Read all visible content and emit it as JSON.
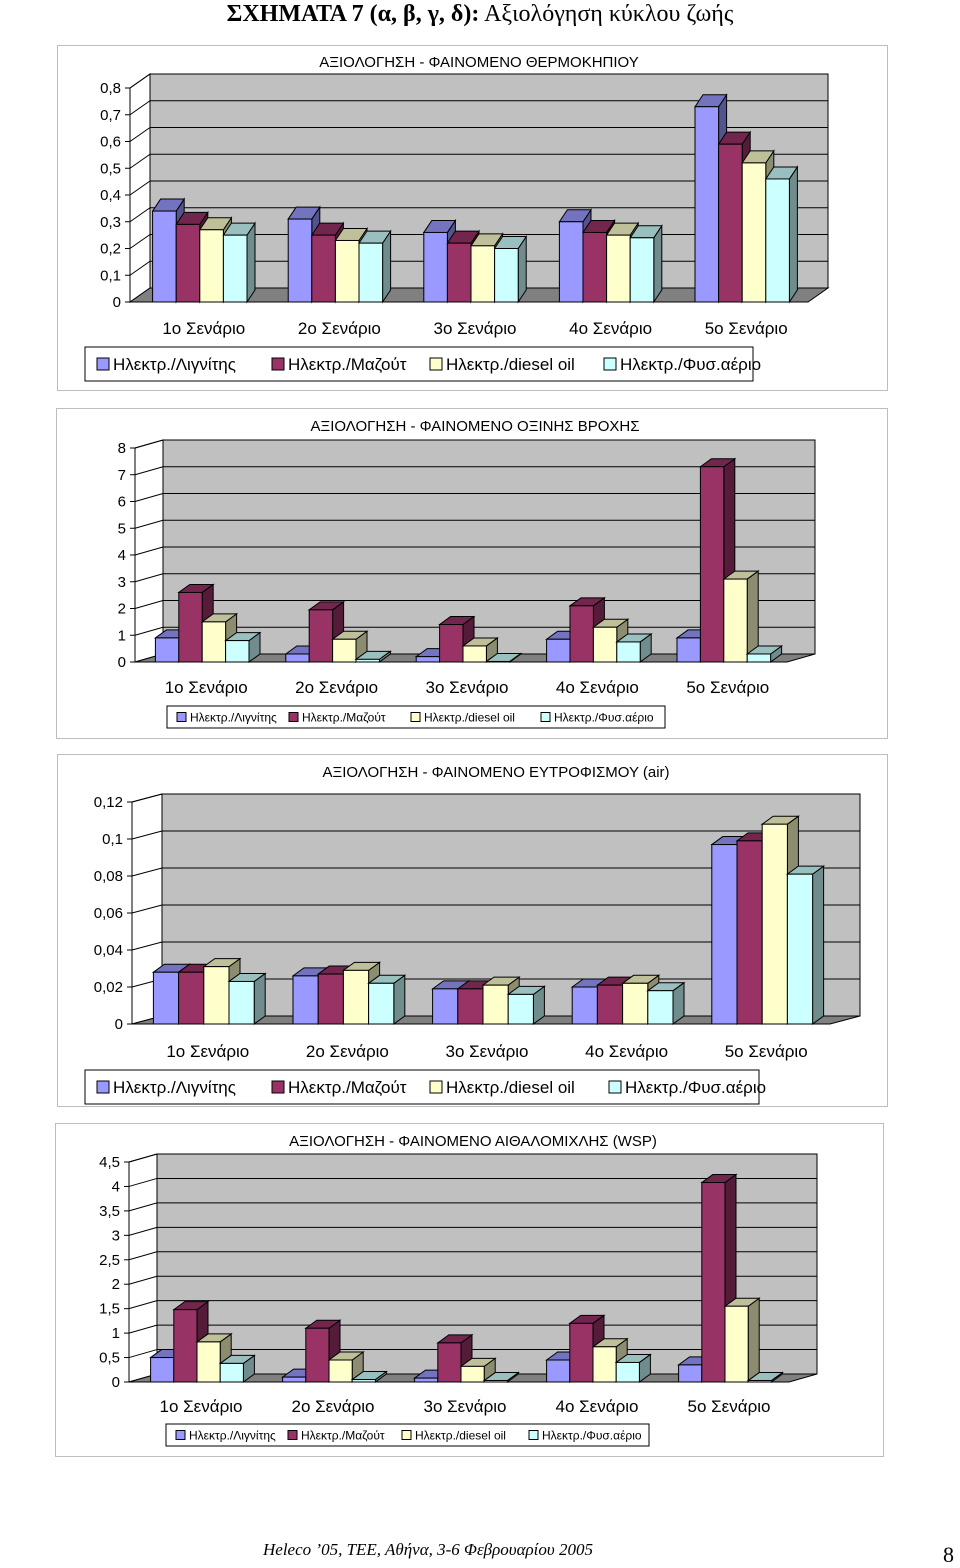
{
  "page": {
    "title_bold": "ΣΧΗΜΑΤΑ 7 (α, β, γ, δ):",
    "title_rest": "Αξιολόγηση κύκλου ζωής",
    "footer": "Heleco ’05, ΤΕΕ, Αθήνα, 3-6 Φεβρουαρίου 2005",
    "page_number": "8"
  },
  "colors": {
    "series": [
      "#9999FF",
      "#993366",
      "#FFFFCC",
      "#CCFFFF"
    ],
    "wall": "#C0C0C0",
    "floor": "#808080"
  },
  "chart_data": [
    {
      "type": "bar",
      "title": "ΑΞΙΟΛΟΓΗΣΗ - ΦΑΙΝΟΜΕΝΟ ΘΕΡΜΟΚΗΠΙΟΥ",
      "categories": [
        "1ο Σενάριο",
        "2ο Σενάριο",
        "3ο Σενάριο",
        "4ο Σενάριο",
        "5ο Σενάριο"
      ],
      "series": [
        {
          "name": "Ηλεκτρ./Λιγνίτης",
          "values": [
            0.34,
            0.31,
            0.26,
            0.3,
            0.73
          ]
        },
        {
          "name": "Ηλεκτρ./Μαζούτ",
          "values": [
            0.29,
            0.25,
            0.22,
            0.26,
            0.59
          ]
        },
        {
          "name": "Ηλεκτρ./diesel oil",
          "values": [
            0.27,
            0.23,
            0.21,
            0.25,
            0.52
          ]
        },
        {
          "name": "Ηλεκτρ./Φυσ.αέριο",
          "values": [
            0.25,
            0.22,
            0.2,
            0.24,
            0.46
          ]
        }
      ],
      "yticks": [
        "0",
        "0,1",
        "0,2",
        "0,3",
        "0,4",
        "0,5",
        "0,6",
        "0,7",
        "0,8"
      ],
      "ylim": [
        0,
        0.8
      ],
      "legend": "bottom"
    },
    {
      "type": "bar",
      "title": "ΑΞΙΟΛΟΓΗΣΗ - ΦΑΙΝΟΜΕΝΟ ΟΞΙΝΗΣ ΒΡΟΧΗΣ",
      "categories": [
        "1ο Σενάριο",
        "2ο Σενάριο",
        "3ο Σενάριο",
        "4ο Σενάριο",
        "5ο Σενάριο"
      ],
      "series": [
        {
          "name": "Ηλεκτρ./Λιγνίτης",
          "values": [
            0.9,
            0.3,
            0.2,
            0.85,
            0.9
          ]
        },
        {
          "name": "Ηλεκτρ./Μαζούτ",
          "values": [
            2.6,
            1.95,
            1.4,
            2.1,
            7.3
          ]
        },
        {
          "name": "Ηλεκτρ./diesel oil",
          "values": [
            1.5,
            0.85,
            0.6,
            1.3,
            3.1
          ]
        },
        {
          "name": "Ηλεκτρ./Φυσ.αέριο",
          "values": [
            0.8,
            0.1,
            0.02,
            0.75,
            0.3
          ]
        }
      ],
      "yticks": [
        "0",
        "1",
        "2",
        "3",
        "4",
        "5",
        "6",
        "7",
        "8"
      ],
      "ylim": [
        0,
        8
      ],
      "legend": "bottom"
    },
    {
      "type": "bar",
      "title": "ΑΞΙΟΛΟΓΗΣΗ - ΦΑΙΝΟΜΕΝΟ ΕΥΤΡΟΦΙΣΜΟΥ (air)",
      "categories": [
        "1ο Σενάριο",
        "2ο Σενάριο",
        "3ο Σενάριο",
        "4ο Σενάριο",
        "5ο Σενάριο"
      ],
      "series": [
        {
          "name": "Ηλεκτρ./Λιγνίτης",
          "values": [
            0.028,
            0.026,
            0.019,
            0.02,
            0.097
          ]
        },
        {
          "name": "Ηλεκτρ./Μαζούτ",
          "values": [
            0.028,
            0.027,
            0.019,
            0.021,
            0.099
          ]
        },
        {
          "name": "Ηλεκτρ./diesel oil",
          "values": [
            0.031,
            0.029,
            0.021,
            0.022,
            0.108
          ]
        },
        {
          "name": "Ηλεκτρ./Φυσ.αέριο",
          "values": [
            0.023,
            0.022,
            0.016,
            0.018,
            0.081
          ]
        }
      ],
      "yticks": [
        "0",
        "0,02",
        "0,04",
        "0,06",
        "0,08",
        "0,1",
        "0,12"
      ],
      "ylim": [
        0,
        0.12
      ],
      "legend": "bottom"
    },
    {
      "type": "bar",
      "title": "ΑΞΙΟΛΟΓΗΣΗ - ΦΑΙΝΟΜΕΝΟ ΑΙΘΑΛΟΜΙΧΛΗΣ (WSP)",
      "categories": [
        "1ο Σενάριο",
        "2ο Σενάριο",
        "3ο Σενάριο",
        "4ο Σενάριο",
        "5ο Σενάριο"
      ],
      "series": [
        {
          "name": "Ηλεκτρ./Λιγνίτης",
          "values": [
            0.5,
            0.1,
            0.08,
            0.45,
            0.35
          ]
        },
        {
          "name": "Ηλεκτρ./Μαζούτ",
          "values": [
            1.48,
            1.1,
            0.8,
            1.2,
            4.08
          ]
        },
        {
          "name": "Ηλεκτρ./diesel oil",
          "values": [
            0.82,
            0.45,
            0.32,
            0.72,
            1.55
          ]
        },
        {
          "name": "Ηλεκτρ./Φυσ.αέριο",
          "values": [
            0.38,
            0.05,
            0.03,
            0.4,
            0.03
          ]
        }
      ],
      "yticks": [
        "0",
        "0,5",
        "1",
        "1,5",
        "2",
        "2,5",
        "3",
        "3,5",
        "4",
        "4,5"
      ],
      "ylim": [
        0,
        4.5
      ],
      "legend": "bottom"
    }
  ]
}
